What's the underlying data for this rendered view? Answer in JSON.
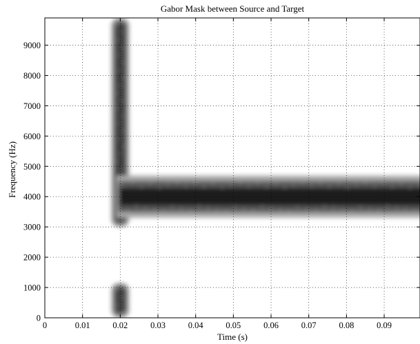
{
  "chart_data": {
    "type": "heatmap",
    "title": "Gabor Mask between Source and Target",
    "xlabel": "Time (s)",
    "ylabel": "Frequency (Hz)",
    "xlim": [
      0,
      0.0995
    ],
    "ylim": [
      0,
      9900
    ],
    "x_ticks": [
      0,
      0.01,
      0.02,
      0.03,
      0.04,
      0.05,
      0.06,
      0.07,
      0.08,
      0.09
    ],
    "x_tick_labels": [
      "0",
      "0.01",
      "0.02",
      "0.03",
      "0.04",
      "0.05",
      "0.06",
      "0.07",
      "0.08",
      "0.09"
    ],
    "y_ticks": [
      0,
      1000,
      2000,
      3000,
      4000,
      5000,
      6000,
      7000,
      8000,
      9000
    ],
    "y_tick_labels": [
      "0",
      "1000",
      "2000",
      "3000",
      "4000",
      "5000",
      "6000",
      "7000",
      "8000",
      "9000"
    ],
    "grid": true,
    "colormap": "gray (dark = high mask value)",
    "features": [
      {
        "name": "vertical-band-upper",
        "time": 0.02,
        "freq_range": [
          3000,
          9900
        ],
        "time_width": 0.004
      },
      {
        "name": "vertical-band-lower",
        "time": 0.02,
        "freq_range": [
          0,
          1150
        ],
        "time_width": 0.004
      },
      {
        "name": "horizontal-band",
        "freq": 4000,
        "time_range": [
          0.019,
          0.0995
        ],
        "freq_width": 1300
      }
    ]
  }
}
